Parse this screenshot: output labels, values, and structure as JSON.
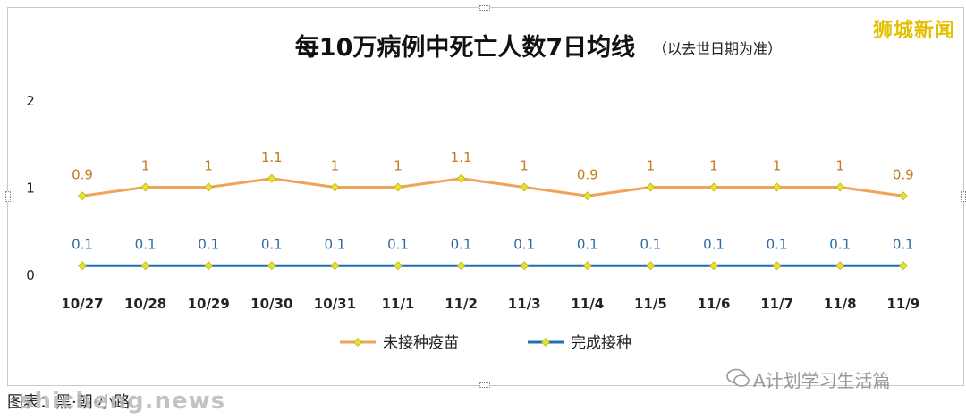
{
  "brand": "狮城新闻",
  "watermark": "A计划学习生活篇",
  "caption": "图表：黑·朝·小路",
  "site": "shicheng.news",
  "chart_data": {
    "type": "line",
    "title": "每10万病例中死亡人数7日均线",
    "subtitle": "（以去世日期为准）",
    "categories": [
      "10/27",
      "10/28",
      "10/29",
      "10/30",
      "10/31",
      "11/1",
      "11/2",
      "11/3",
      "11/4",
      "11/5",
      "11/6",
      "11/7",
      "11/8",
      "11/9"
    ],
    "ylim": [
      0,
      2
    ],
    "yticks": [
      0,
      1,
      2
    ],
    "grid": false,
    "legend": "bottom",
    "series": [
      {
        "name": "未接种疫苗",
        "color": "#f0a35a",
        "label_color": "#c57a1e",
        "values": [
          0.9,
          1,
          1,
          1.1,
          1,
          1,
          1.1,
          1,
          0.9,
          1,
          1,
          1,
          1,
          0.9
        ]
      },
      {
        "name": "完成接种",
        "color": "#1f6fb5",
        "label_color": "#2b6aa6",
        "values": [
          0.1,
          0.1,
          0.1,
          0.1,
          0.1,
          0.1,
          0.1,
          0.1,
          0.1,
          0.1,
          0.1,
          0.1,
          0.1,
          0.1
        ]
      }
    ],
    "marker_color": "#e6e12a"
  }
}
